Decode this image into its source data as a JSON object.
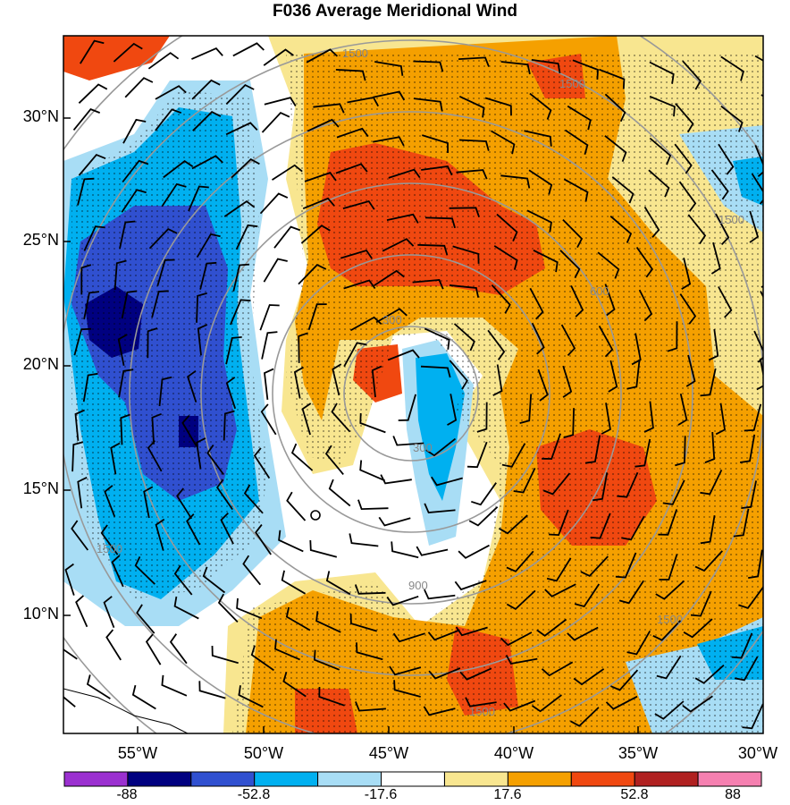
{
  "title": "F036 Average Meridional Wind",
  "latitude_labels": [
    "30°N",
    "25°N",
    "20°N",
    "15°N",
    "10°N"
  ],
  "longitude_labels": [
    "55°W",
    "50°W",
    "45°W",
    "40°W",
    "35°W",
    "30°W"
  ],
  "height_contour_labels": [
    "300",
    "300",
    "600",
    "900",
    "1500",
    "1500",
    "1500",
    "1500",
    "1500",
    "1500"
  ],
  "colorbar": {
    "colors": [
      "#9b30d0",
      "#000080",
      "#3050d0",
      "#00b0f0",
      "#a8ddf5",
      "#ffffff",
      "#f8e690",
      "#f5a000",
      "#f04810",
      "#b02020",
      "#f580b0"
    ],
    "labels": [
      "-88",
      "-52.8",
      "-17.6",
      "17.6",
      "52.8",
      "88"
    ]
  },
  "colors": {
    "positive_strong": "#f04810",
    "positive_mid": "#f5a000",
    "positive_weak": "#f8e690",
    "negative_weak": "#a8ddf5",
    "negative_mid": "#00b0f0",
    "negative_strong": "#3050d0",
    "negative_max": "#000080",
    "positive_max": "#b02020",
    "height_contour": "#999999"
  }
}
